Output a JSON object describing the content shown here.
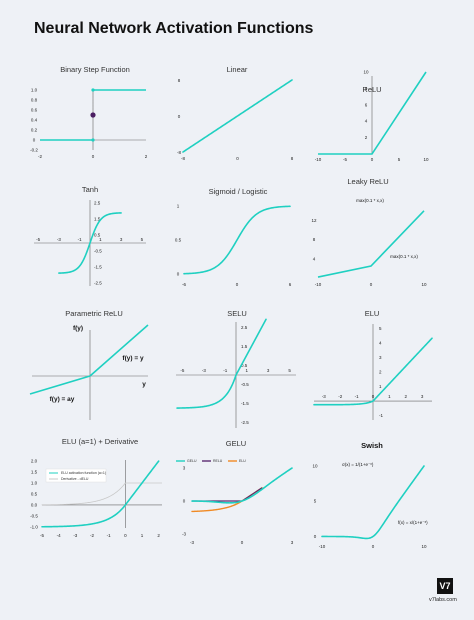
{
  "page": {
    "title": "Neural Network Activation Functions",
    "logo_text": "V7",
    "footer_text": "v7labs.com"
  },
  "colors": {
    "curve": "#1fd0c1",
    "axis": "#666666",
    "relu": "#5b2b72",
    "elu": "#f08a24",
    "derivative": "#c8c8c8",
    "background": "#eef1f6"
  },
  "chart_data": [
    {
      "type": "line",
      "function": "binary_step",
      "title": "Binary Step Function",
      "xlim": [
        -2,
        2
      ],
      "ylim": [
        -0.2,
        1.0
      ],
      "xticks": [
        "-2",
        "0",
        "2"
      ],
      "yticks": [
        "1.0",
        "0.8",
        "0.6",
        "0.4",
        "0.2",
        "0",
        "-0.2"
      ],
      "series": [
        {
          "points": [
            [
              -2,
              0
            ],
            [
              0,
              0
            ]
          ]
        },
        {
          "points": [
            [
              0,
              1
            ],
            [
              2,
              1
            ]
          ]
        }
      ],
      "markers": [
        {
          "x": 0,
          "y": 0.5
        }
      ]
    },
    {
      "type": "line",
      "function": "linear",
      "title": "Linear",
      "xlim": [
        -8,
        8
      ],
      "ylim": [
        -8,
        8
      ],
      "xticks": [
        "-8",
        "0",
        "8"
      ],
      "yticks": [
        "8",
        "0",
        "-8"
      ],
      "series": [
        {
          "points": [
            [
              -8,
              -8
            ],
            [
              8,
              8
            ]
          ]
        }
      ]
    },
    {
      "type": "line",
      "function": "relu",
      "title": "ReLU",
      "xlim": [
        -10,
        10
      ],
      "ylim": [
        0,
        10
      ],
      "xticks": [
        "-10",
        "-5",
        "0",
        "5",
        "10"
      ],
      "yticks": [
        "10",
        "8",
        "6",
        "4",
        "2"
      ],
      "series": [
        {
          "points": [
            [
              -10,
              0
            ],
            [
              0,
              0
            ],
            [
              10,
              10
            ]
          ]
        }
      ]
    },
    {
      "type": "line",
      "function": "tanh",
      "title": "Tanh",
      "xlim": [
        -5,
        5
      ],
      "ylim": [
        -2.5,
        2.5
      ],
      "xticks": [
        "-5",
        "-3",
        "-1",
        "1",
        "3",
        "5"
      ],
      "yticks": [
        "2.5",
        "1.5",
        "0.5",
        "-0.5",
        "-1.5",
        "-2.5"
      ]
    },
    {
      "type": "line",
      "function": "sigmoid",
      "title": "Sigmoid / Logistic",
      "xlim": [
        -6,
        6
      ],
      "ylim": [
        0,
        1
      ],
      "xticks": [
        "-6",
        "0",
        "6"
      ],
      "yticks": [
        "1",
        "0.5",
        "0"
      ]
    },
    {
      "type": "line",
      "function": "leaky_relu",
      "title": "Leaky ReLU",
      "xlim": [
        -10,
        10
      ],
      "ylim": [
        0,
        15
      ],
      "xticks": [
        "-10",
        "0",
        "10"
      ],
      "yticks": [
        "12",
        "8",
        "4"
      ],
      "annotations": [
        "max(0.1 * x,x)",
        "max(0.1 * x,x)"
      ]
    },
    {
      "type": "line",
      "function": "parametric_relu",
      "title": "Parametric ReLU",
      "labels": {
        "fy": "f(y)",
        "y": "y",
        "pos": "f(y) = y",
        "neg": "f(y) = ay"
      }
    },
    {
      "type": "line",
      "function": "selu",
      "title": "SELU",
      "xlim": [
        -5,
        5
      ],
      "ylim": [
        -2.5,
        2.5
      ],
      "xticks": [
        "-5",
        "-3",
        "-1",
        "1",
        "3",
        "5"
      ],
      "yticks": [
        "2.5",
        "1.5",
        "0.5",
        "-0.5",
        "-1.5",
        "-2.5"
      ]
    },
    {
      "type": "line",
      "function": "elu",
      "title": "ELU",
      "xlim": [
        -3,
        3
      ],
      "ylim": [
        -1,
        5
      ],
      "xticks": [
        "-3",
        "-2",
        "-1",
        "0",
        "1",
        "2",
        "3"
      ],
      "yticks": [
        "5",
        "4",
        "3",
        "2",
        "1",
        "-1"
      ]
    },
    {
      "type": "line",
      "function": "elu_derivative",
      "title": "ELU (a=1) + Derivative",
      "xlim": [
        -5,
        2
      ],
      "ylim": [
        -1,
        2
      ],
      "xticks": [
        "-5",
        "-4",
        "-3",
        "-2",
        "-1",
        "0",
        "1",
        "2"
      ],
      "yticks": [
        "2.0",
        "1.5",
        "1.0",
        "0.5",
        "0.0",
        "-0.5",
        "-1.0"
      ],
      "legend": [
        "ELU activation function (a=1)",
        "Derivative - dELU"
      ],
      "series": [
        {
          "name": "ELU activation function (a=1)"
        },
        {
          "name": "Derivative - dELU"
        }
      ]
    },
    {
      "type": "line",
      "function": "gelu",
      "title": "GELU",
      "xlim": [
        -3,
        3
      ],
      "ylim": [
        -3,
        3
      ],
      "xticks": [
        "-3",
        "0",
        "3"
      ],
      "yticks": [
        "3",
        "0",
        "-3"
      ],
      "legend": [
        "GELU",
        "RELU",
        "ELU"
      ],
      "series": [
        {
          "name": "GELU"
        },
        {
          "name": "RELU"
        },
        {
          "name": "ELU"
        }
      ]
    },
    {
      "type": "line",
      "function": "swish",
      "title": "Swish",
      "xlim": [
        -10,
        10
      ],
      "ylim": [
        0,
        10
      ],
      "xticks": [
        "-10",
        "0",
        "10"
      ],
      "yticks": [
        "10",
        "5",
        "0"
      ],
      "annotations": [
        "σ(x) = 1/(1+e⁻ˣ)",
        "f(x) = x/(1+e⁻ˣ)"
      ]
    }
  ]
}
